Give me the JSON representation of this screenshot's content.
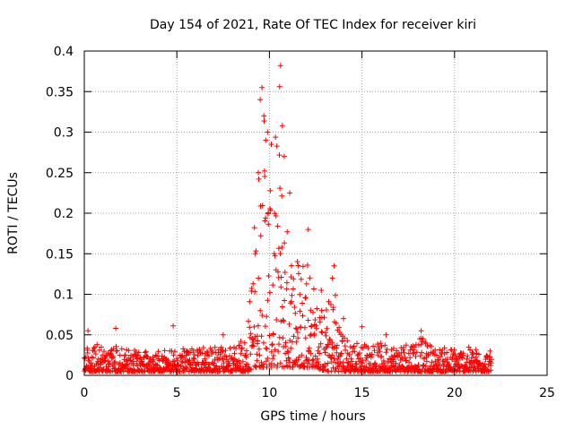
{
  "chart_data": {
    "type": "scatter",
    "title": "Day 154 of 2021, Rate Of TEC Index for receiver kiri",
    "xlabel": "GPS time / hours",
    "ylabel": "ROTI / TECUs",
    "xlim": [
      0,
      25
    ],
    "ylim": [
      0,
      0.4
    ],
    "xticks": [
      "0",
      "5",
      "10",
      "15",
      "20",
      "25"
    ],
    "yticks": [
      "0",
      "0.05",
      "0.1",
      "0.15",
      "0.2",
      "0.25",
      "0.3",
      "0.35",
      "0.4"
    ],
    "grid": true,
    "marker": "+",
    "colors": {
      "points": "#ff0000",
      "axes": "#000000",
      "grid": "#a0a0a0"
    },
    "series": [
      {
        "name": "ROTI",
        "data_range_hours": [
          0,
          22
        ],
        "envelope": [
          {
            "x": 0.0,
            "ymin": 0.005,
            "ymax": 0.035
          },
          {
            "x": 1.0,
            "ymin": 0.005,
            "ymax": 0.04
          },
          {
            "x": 2.0,
            "ymin": 0.005,
            "ymax": 0.035
          },
          {
            "x": 3.0,
            "ymin": 0.005,
            "ymax": 0.03
          },
          {
            "x": 4.0,
            "ymin": 0.005,
            "ymax": 0.03
          },
          {
            "x": 5.0,
            "ymin": 0.005,
            "ymax": 0.035
          },
          {
            "x": 6.0,
            "ymin": 0.005,
            "ymax": 0.035
          },
          {
            "x": 7.0,
            "ymin": 0.005,
            "ymax": 0.035
          },
          {
            "x": 8.0,
            "ymin": 0.005,
            "ymax": 0.035
          },
          {
            "x": 8.8,
            "ymin": 0.005,
            "ymax": 0.05
          },
          {
            "x": 9.2,
            "ymin": 0.01,
            "ymax": 0.2
          },
          {
            "x": 9.6,
            "ymin": 0.01,
            "ymax": 0.35
          },
          {
            "x": 10.0,
            "ymin": 0.01,
            "ymax": 0.28
          },
          {
            "x": 10.5,
            "ymin": 0.01,
            "ymax": 0.31
          },
          {
            "x": 11.0,
            "ymin": 0.01,
            "ymax": 0.18
          },
          {
            "x": 11.5,
            "ymin": 0.01,
            "ymax": 0.16
          },
          {
            "x": 12.0,
            "ymin": 0.01,
            "ymax": 0.18
          },
          {
            "x": 12.5,
            "ymin": 0.01,
            "ymax": 0.1
          },
          {
            "x": 13.0,
            "ymin": 0.005,
            "ymax": 0.08
          },
          {
            "x": 13.5,
            "ymin": 0.005,
            "ymax": 0.12
          },
          {
            "x": 14.0,
            "ymin": 0.005,
            "ymax": 0.05
          },
          {
            "x": 15.0,
            "ymin": 0.005,
            "ymax": 0.04
          },
          {
            "x": 16.0,
            "ymin": 0.005,
            "ymax": 0.04
          },
          {
            "x": 17.0,
            "ymin": 0.005,
            "ymax": 0.04
          },
          {
            "x": 18.0,
            "ymin": 0.005,
            "ymax": 0.05
          },
          {
            "x": 19.0,
            "ymin": 0.005,
            "ymax": 0.035
          },
          {
            "x": 20.0,
            "ymin": 0.005,
            "ymax": 0.035
          },
          {
            "x": 21.0,
            "ymin": 0.005,
            "ymax": 0.035
          },
          {
            "x": 22.0,
            "ymin": 0.005,
            "ymax": 0.03
          }
        ],
        "outliers": [
          {
            "x": 10.6,
            "y": 0.382
          },
          {
            "x": 10.55,
            "y": 0.356
          },
          {
            "x": 9.6,
            "y": 0.355
          },
          {
            "x": 9.5,
            "y": 0.34
          },
          {
            "x": 9.7,
            "y": 0.32
          },
          {
            "x": 10.7,
            "y": 0.308
          },
          {
            "x": 9.9,
            "y": 0.3
          },
          {
            "x": 9.8,
            "y": 0.29
          },
          {
            "x": 10.8,
            "y": 0.27
          },
          {
            "x": 9.4,
            "y": 0.25
          },
          {
            "x": 11.1,
            "y": 0.225
          },
          {
            "x": 12.1,
            "y": 0.18
          },
          {
            "x": 13.5,
            "y": 0.135
          },
          {
            "x": 13.4,
            "y": 0.12
          },
          {
            "x": 12.8,
            "y": 0.105
          },
          {
            "x": 14.0,
            "y": 0.07
          },
          {
            "x": 15.0,
            "y": 0.06
          },
          {
            "x": 4.8,
            "y": 0.061
          },
          {
            "x": 1.7,
            "y": 0.058
          },
          {
            "x": 0.2,
            "y": 0.055
          },
          {
            "x": 18.2,
            "y": 0.055
          },
          {
            "x": 7.5,
            "y": 0.05
          },
          {
            "x": 16.3,
            "y": 0.05
          }
        ]
      }
    ]
  }
}
